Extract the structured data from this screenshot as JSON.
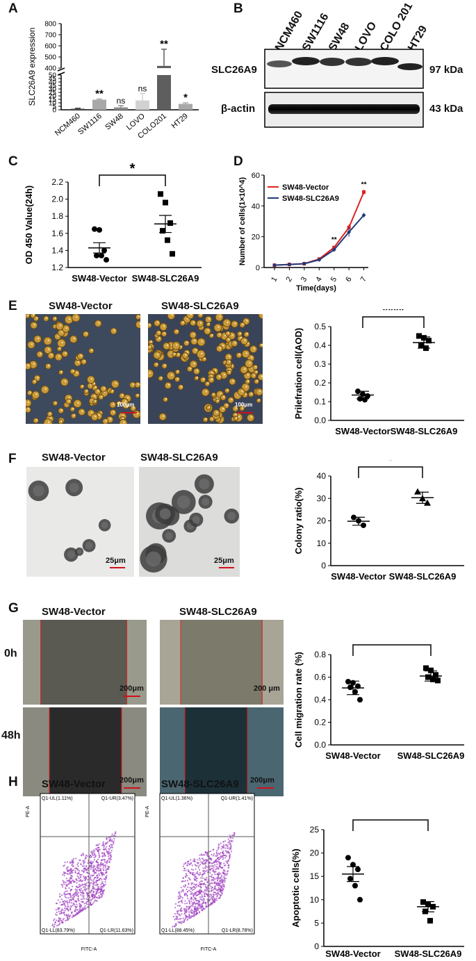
{
  "panels": {
    "A": "A",
    "B": "B",
    "C": "C",
    "D": "D",
    "E": "E",
    "F": "F",
    "G": "G",
    "H": "H"
  },
  "panel_b": {
    "lanes": [
      "NCM460",
      "SW1116",
      "SW48",
      "LOVO",
      "COLO 201",
      "HT29"
    ],
    "row1_label": "SLC26A9",
    "row1_kda": "97 kDa",
    "row2_label": "β-actin",
    "row2_kda": "43 kDa"
  },
  "panel_e": {
    "title_left": "SW48-Vector",
    "title_right": "SW48-SLC26A9",
    "scale_left": "100μm",
    "scale_right": "100μm"
  },
  "panel_f": {
    "title_left": "SW48-Vector",
    "title_right": "SW48-SLC26A9",
    "scale_left": "25μm",
    "scale_right": "25μm"
  },
  "panel_g": {
    "title_left": "SW48-Vector",
    "title_right": "SW48-SLC26A9",
    "row1": "0h",
    "row2": "48h",
    "scale_tl": "200μm",
    "scale_tr": "200 μm",
    "scale_bl": "200μm",
    "scale_br": "200μm"
  },
  "panel_h": {
    "title_left": "SW48-Vector",
    "title_right": "SW48-SLC26A9",
    "left_ul": "Q1-UL(1.11%)",
    "left_ur": "Q1-UR(3.47%)",
    "left_ll": "Q1-LL(83.79%)",
    "left_lr": "Q1-LR(11.63%)",
    "right_ul": "Q1-UL(1.36%)",
    "right_ur": "Q1-UR(1.41%)",
    "right_ll": "Q1-LL(88.45%)",
    "right_lr": "Q1-LR(8.78%)",
    "x_axis": "FITC-A",
    "y_axis": "PE-A",
    "dot_color": "#a040c0"
  },
  "chart_data": [
    {
      "id": "A",
      "type": "bar",
      "title": "",
      "ylabel": "SLC26A9 expression",
      "categories": [
        "NCM460",
        "SW1116",
        "SW48",
        "LOVO",
        "COLO201",
        "HT29"
      ],
      "values": [
        1.5,
        14.5,
        3.5,
        13.5,
        420,
        8.5
      ],
      "errors": [
        0.8,
        1,
        2.5,
        10,
        150,
        1.5
      ],
      "significance": [
        "",
        "**",
        "ns",
        "ns",
        "**",
        "*"
      ],
      "yticks_lower": [
        "0",
        "5",
        "10",
        "15",
        "20",
        "25",
        "30",
        "35",
        "40",
        "45",
        "50"
      ],
      "yticks_upper": [
        "400",
        "500",
        "600",
        "700",
        "800"
      ],
      "axis_break": [
        50,
        400
      ],
      "colors": [
        "#4a4a4a",
        "#a8a8a8",
        "#8c8c8c",
        "#d2d2d2",
        "#5e5e5e",
        "#a8a8a8"
      ]
    },
    {
      "id": "C",
      "type": "scatter",
      "title": "",
      "ylabel": "OD 450 Value(24h)",
      "categories": [
        "SW48-Vector",
        "SW48-SLC26A9"
      ],
      "groups": [
        {
          "name": "SW48-Vector",
          "points": [
            1.65,
            1.64,
            1.4,
            1.34,
            1.34,
            1.29
          ],
          "mean": 1.43,
          "sem": 0.06
        },
        {
          "name": "SW48-SLC26A9",
          "points": [
            2.06,
            1.96,
            1.72,
            1.63,
            1.52,
            1.36
          ],
          "mean": 1.71,
          "sem": 0.1
        }
      ],
      "yticks": [
        "1.2",
        "1.4",
        "1.6",
        "1.8",
        "2.0",
        "2.2"
      ],
      "ylim": [
        1.2,
        2.2
      ],
      "significance": "*"
    },
    {
      "id": "D",
      "type": "line",
      "title": "",
      "xlabel": "Time(days)",
      "ylabel": "Number of cells(1×10^4)",
      "x": [
        1,
        2,
        3,
        4,
        5,
        6,
        7
      ],
      "xticks": [
        "1",
        "2",
        "3",
        "4",
        "5",
        "6",
        "7"
      ],
      "yticks": [
        "0",
        "20",
        "40",
        "60"
      ],
      "ylim": [
        0,
        60
      ],
      "series": [
        {
          "name": "SW48-Vector",
          "color": "#e02020",
          "values": [
            1.5,
            2,
            2.5,
            5.5,
            13,
            26,
            49
          ],
          "errors": [
            0.3,
            0.3,
            0.3,
            0.5,
            1,
            2,
            1.5
          ]
        },
        {
          "name": "SW48-SLC26A9",
          "color": "#1f3a7a",
          "values": [
            1.5,
            2,
            2.5,
            5,
            11.5,
            23,
            34
          ],
          "errors": [
            0.3,
            0.3,
            0.3,
            0.5,
            1,
            3,
            1.5
          ]
        }
      ],
      "annotations": [
        {
          "x": 5,
          "text": "**"
        },
        {
          "x": 7,
          "text": "**"
        }
      ],
      "legend": "top-left"
    },
    {
      "id": "E",
      "type": "scatter",
      "title": "",
      "ylabel": "Prilefration cell(AOD)",
      "categories": [
        "SW48-Vector",
        "SW48-SLC26A9"
      ],
      "groups": [
        {
          "name": "SW48-Vector",
          "points": [
            0.155,
            0.14,
            0.13,
            0.115,
            0.11
          ],
          "mean": 0.135,
          "sem": 0.02
        },
        {
          "name": "SW48-SLC26A9",
          "points": [
            0.45,
            0.44,
            0.425,
            0.4,
            0.385
          ],
          "mean": 0.415,
          "sem": 0.03
        }
      ],
      "yticks": [
        "0.0",
        "0.1",
        "0.2",
        "0.3",
        "0.4",
        "0.5"
      ],
      "ylim": [
        0,
        0.5
      ],
      "significance": "****",
      "marker": "square"
    },
    {
      "id": "F",
      "type": "scatter",
      "title": "",
      "ylabel": "Colony ratio(%)",
      "categories": [
        "SW48-Vector",
        "SW48-SLC26A9"
      ],
      "groups": [
        {
          "name": "SW48-Vector",
          "points": [
            21.5,
            20,
            18
          ],
          "mean": 19.8,
          "sem": 1.8
        },
        {
          "name": "SW48-SLC26A9",
          "points": [
            33,
            30,
            28
          ],
          "mean": 30.3,
          "sem": 2.5
        }
      ],
      "yticks": [
        "0",
        "10",
        "20",
        "30",
        "40"
      ],
      "ylim": [
        0,
        40
      ],
      "significance": "*",
      "marker": "triangle"
    },
    {
      "id": "G",
      "type": "scatter",
      "title": "",
      "ylabel": "Cell migration rate (%)",
      "categories": [
        "SW48-Vector",
        "SW48-SLC26A9"
      ],
      "groups": [
        {
          "name": "SW48-Vector",
          "points": [
            0.56,
            0.55,
            0.52,
            0.51,
            0.47,
            0.4
          ],
          "mean": 0.505,
          "sem": 0.06
        },
        {
          "name": "SW48-SLC26A9",
          "points": [
            0.68,
            0.66,
            0.62,
            0.6,
            0.58,
            0.57
          ],
          "mean": 0.61,
          "sem": 0.045
        }
      ],
      "yticks": [
        "0.0",
        "0.2",
        "0.4",
        "0.6",
        "0.8"
      ],
      "ylim": [
        0,
        0.8
      ],
      "significance": "**",
      "marker": "mixed"
    },
    {
      "id": "H",
      "type": "scatter",
      "title": "",
      "ylabel": "Apoptotic cells(%)",
      "categories": [
        "SW48-Vector",
        "SW48-SLC26A9"
      ],
      "groups": [
        {
          "name": "SW48-Vector",
          "points": [
            19,
            17.5,
            16.5,
            14.5,
            13,
            10
          ],
          "mean": 15.5,
          "sem": 1.6
        },
        {
          "name": "SW48-SLC26A9",
          "points": [
            9.5,
            9,
            8.5,
            7.5,
            5.5
          ],
          "mean": 8.5,
          "sem": 1.1
        }
      ],
      "yticks": [
        "0",
        "5",
        "10",
        "15",
        "20",
        "25"
      ],
      "ylim": [
        0,
        25
      ],
      "significance": "**",
      "marker": "mixed"
    }
  ]
}
